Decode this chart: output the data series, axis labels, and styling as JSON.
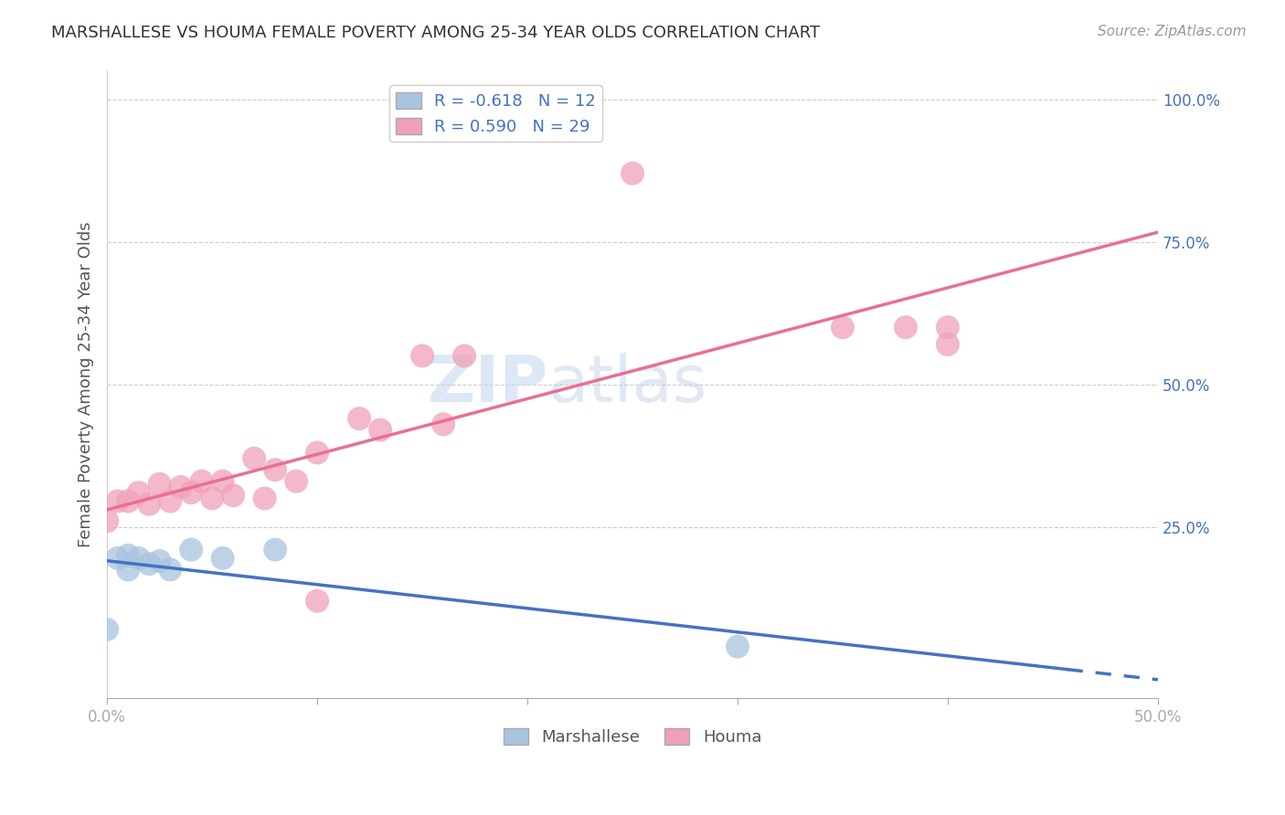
{
  "title": "MARSHALLESE VS HOUMA FEMALE POVERTY AMONG 25-34 YEAR OLDS CORRELATION CHART",
  "source": "Source: ZipAtlas.com",
  "ylabel": "Female Poverty Among 25-34 Year Olds",
  "xlim": [
    0.0,
    0.5
  ],
  "ylim": [
    -0.05,
    1.05
  ],
  "xtick_positions": [
    0.0,
    0.5
  ],
  "xtick_labels": [
    "0.0%",
    "50.0%"
  ],
  "yticks": [
    0.25,
    0.5,
    0.75,
    1.0
  ],
  "ytick_labels": [
    "25.0%",
    "50.0%",
    "75.0%",
    "100.0%"
  ],
  "marshallese_r": -0.618,
  "marshallese_n": 12,
  "houma_r": 0.59,
  "houma_n": 29,
  "marshallese_color": "#a8c4e0",
  "houma_color": "#f0a0b8",
  "marshallese_line_color": "#4472c4",
  "houma_line_color": "#e87090",
  "legend_text_color": "#4472c4",
  "watermark_zip": "ZIP",
  "watermark_atlas": "atlas",
  "marshallese_x": [
    0.0,
    0.005,
    0.01,
    0.01,
    0.015,
    0.02,
    0.025,
    0.03,
    0.04,
    0.055,
    0.08,
    0.3
  ],
  "marshallese_y": [
    0.07,
    0.195,
    0.175,
    0.2,
    0.195,
    0.185,
    0.19,
    0.175,
    0.21,
    0.195,
    0.21,
    0.04
  ],
  "houma_x": [
    0.0,
    0.005,
    0.01,
    0.015,
    0.02,
    0.025,
    0.03,
    0.035,
    0.04,
    0.045,
    0.05,
    0.055,
    0.06,
    0.07,
    0.075,
    0.08,
    0.09,
    0.1,
    0.12,
    0.13,
    0.15,
    0.17,
    0.16,
    0.35,
    0.38,
    0.4,
    0.4,
    0.1,
    0.25
  ],
  "houma_y": [
    0.26,
    0.295,
    0.295,
    0.31,
    0.29,
    0.325,
    0.295,
    0.32,
    0.31,
    0.33,
    0.3,
    0.33,
    0.305,
    0.37,
    0.3,
    0.35,
    0.33,
    0.38,
    0.44,
    0.42,
    0.55,
    0.55,
    0.43,
    0.6,
    0.6,
    0.6,
    0.57,
    0.12,
    0.87
  ]
}
